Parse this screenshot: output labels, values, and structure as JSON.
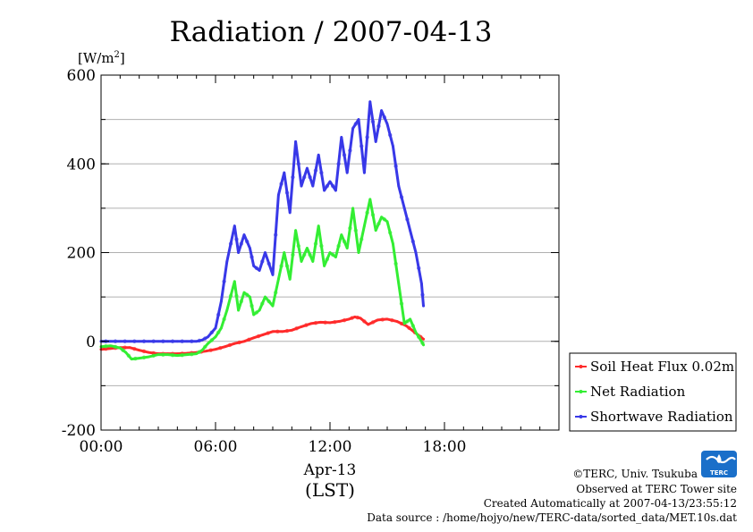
{
  "chart_data": {
    "type": "line",
    "title": "Radiation / 2007-04-13",
    "ylabel": "[W/m2]",
    "ylabel_main": "[W/m",
    "ylabel_sup": "2",
    "ylabel_close": "]",
    "xlabel": "Apr-13",
    "xlabel_sub": "(LST)",
    "xlim": [
      0,
      24
    ],
    "ylim": [
      -200,
      600
    ],
    "yticks": [
      -200,
      0,
      200,
      400,
      600
    ],
    "ytick_labels": [
      "-200",
      "0",
      "200",
      "400",
      "600"
    ],
    "xticks": [
      0,
      6,
      12,
      18
    ],
    "xtick_labels": [
      "00:00",
      "06:00",
      "12:00",
      "18:00"
    ],
    "grid": true,
    "legend_position": "right-bottom",
    "series": [
      {
        "name": "Soil Heat Flux 0.02m",
        "color": "#ff2a2a",
        "x": [
          0,
          0.5,
          1,
          1.5,
          2,
          2.5,
          3,
          3.5,
          4,
          4.5,
          5,
          5.5,
          6,
          6.5,
          7,
          7.5,
          8,
          8.5,
          9,
          9.5,
          10,
          10.5,
          11,
          11.5,
          12,
          12.5,
          13,
          13.3,
          13.6,
          14,
          14.5,
          15,
          15.5,
          16,
          16.3,
          16.6,
          16.9
        ],
        "y": [
          -18,
          -16,
          -14,
          -14,
          -20,
          -25,
          -28,
          -28,
          -28,
          -27,
          -25,
          -22,
          -18,
          -12,
          -5,
          0,
          8,
          15,
          22,
          22,
          25,
          33,
          40,
          43,
          42,
          45,
          50,
          55,
          52,
          38,
          48,
          50,
          45,
          35,
          25,
          15,
          5
        ]
      },
      {
        "name": "Net Radiation",
        "color": "#33ee33",
        "x": [
          0,
          0.5,
          1,
          1.3,
          1.6,
          2,
          2.5,
          3,
          3.5,
          4,
          4.5,
          5,
          5.3,
          5.6,
          6,
          6.3,
          6.6,
          7,
          7.2,
          7.5,
          7.8,
          8,
          8.3,
          8.6,
          9,
          9.3,
          9.6,
          9.9,
          10.2,
          10.5,
          10.8,
          11.1,
          11.4,
          11.7,
          12,
          12.3,
          12.6,
          12.9,
          13.2,
          13.5,
          13.8,
          14.1,
          14.4,
          14.7,
          15,
          15.3,
          15.6,
          15.9,
          16.2,
          16.5,
          16.8,
          16.9
        ],
        "y": [
          -12,
          -10,
          -15,
          -25,
          -40,
          -38,
          -35,
          -30,
          -30,
          -32,
          -30,
          -28,
          -20,
          -5,
          10,
          30,
          70,
          135,
          70,
          110,
          100,
          60,
          70,
          100,
          80,
          140,
          200,
          140,
          250,
          180,
          210,
          180,
          260,
          170,
          200,
          190,
          240,
          210,
          300,
          200,
          260,
          320,
          250,
          280,
          270,
          220,
          130,
          40,
          50,
          20,
          0,
          -8
        ]
      },
      {
        "name": "Shortwave Radiation",
        "color": "#3838e8",
        "x": [
          0,
          0.5,
          1,
          1.5,
          2,
          2.5,
          3,
          3.5,
          4,
          4.5,
          5,
          5.3,
          5.6,
          6,
          6.3,
          6.6,
          7,
          7.2,
          7.5,
          7.8,
          8,
          8.3,
          8.6,
          9,
          9.3,
          9.6,
          9.9,
          10.2,
          10.5,
          10.8,
          11.1,
          11.4,
          11.7,
          12,
          12.3,
          12.6,
          12.9,
          13.2,
          13.5,
          13.8,
          14.1,
          14.4,
          14.7,
          15,
          15.3,
          15.6,
          15.9,
          16.2,
          16.5,
          16.8,
          16.9
        ],
        "y": [
          0,
          0,
          0,
          0,
          0,
          0,
          0,
          0,
          0,
          0,
          0,
          3,
          10,
          30,
          90,
          180,
          260,
          200,
          240,
          210,
          170,
          160,
          200,
          150,
          330,
          380,
          290,
          450,
          350,
          390,
          350,
          420,
          340,
          360,
          340,
          460,
          380,
          480,
          500,
          380,
          540,
          450,
          520,
          490,
          440,
          350,
          300,
          250,
          200,
          130,
          80
        ]
      }
    ]
  },
  "credits": {
    "copyright": "©TERC, Univ. Tsukuba",
    "observed": "Observed at TERC Tower site",
    "created": "Created Automatically at 2007-04-13/23:55:12",
    "source": "Data source : /home/hojyo/new/TERC-data/sorted_data/MET.10s.dat"
  },
  "logo": {
    "text": "TERC",
    "color": "#1a6fc9"
  }
}
